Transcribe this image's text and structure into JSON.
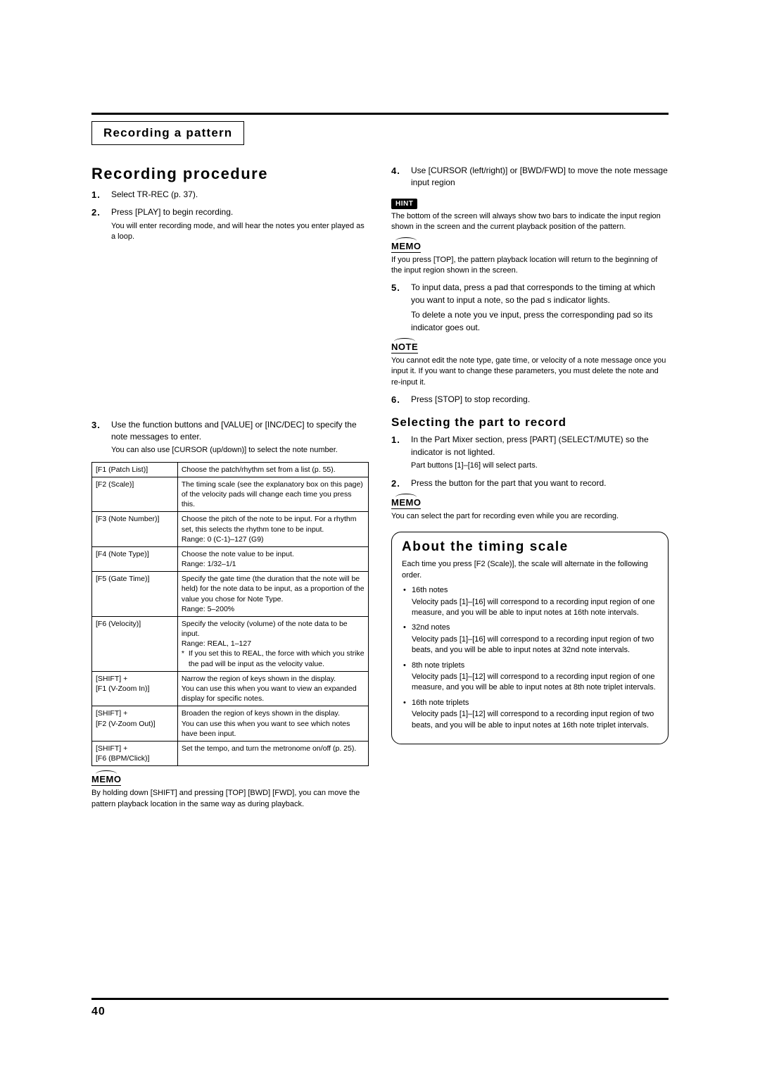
{
  "page_number": "40",
  "title_box": "Recording a pattern",
  "left": {
    "heading": "Recording procedure",
    "steps": [
      {
        "main": "Select TR-REC (p. 37)."
      },
      {
        "main": "Press [PLAY] to begin recording.",
        "sub": "You will enter recording mode, and will hear the notes you enter played as a loop."
      },
      {
        "main": "Use the function buttons and [VALUE] or [INC/DEC] to specify the note messages to enter.",
        "sub": "You can also use [CURSOR (up/down)]  to select the note number."
      }
    ],
    "func_table": [
      {
        "k": "[F1 (Patch List)]",
        "v": "Choose the patch/rhythm set from a list (p. 55)."
      },
      {
        "k": "[F2 (Scale)]",
        "v": "The timing scale (see the explanatory box on this page) of the velocity pads will change each time you press this."
      },
      {
        "k": "[F3 (Note Number)]",
        "v": "Choose the pitch of the note to be input. For a rhythm set, this selects the rhythm tone to be input.\nRange: 0 (C-1)–127 (G9)"
      },
      {
        "k": "[F4 (Note Type)]",
        "v": "Choose the note value to be input.\nRange: 1/32–1/1"
      },
      {
        "k": "[F5 (Gate Time)]",
        "v": "Specify the gate time (the duration that the note will be held) for the note data to be input, as a proportion of the value you chose for Note Type.\nRange: 5–200%"
      },
      {
        "k": "[F6 (Velocity)]",
        "v": "Specify the velocity (volume) of the note data to be input.\nRange: REAL, 1–127",
        "aster": "If you set this to REAL, the force with which you strike the pad will be input as the velocity value."
      },
      {
        "k": "[SHIFT] +\n[F1 (V-Zoom In)]",
        "v": "Narrow the region of keys shown in the display.\nYou can use this when you want to view an expanded display for specific notes."
      },
      {
        "k": "[SHIFT] +\n[F2 (V-Zoom Out)]",
        "v": "Broaden the region of keys shown in the display.\nYou can use this when you want to see which notes have been input."
      },
      {
        "k": "[SHIFT] +\n[F6 (BPM/Click)]",
        "v": "Set the tempo, and turn the metronome on/off (p. 25)."
      }
    ],
    "memo_label": "MEMO",
    "memo_text": "By holding down [SHIFT] and pressing [TOP] [BWD] [FWD], you can move the pattern playback location in the same way as during playback."
  },
  "right": {
    "step4": "Use [CURSOR (left/right)] or [BWD/FWD] to move the note message input region",
    "hint_badge": "HINT",
    "hint_text": "The bottom of the screen will always show two bars to indicate the input region shown in the screen and the current playback position of the pattern.",
    "memo1_label": "MEMO",
    "memo1_text": "If you press [TOP], the pattern playback location will return to the beginning of the input region shown in the screen.",
    "step5_a": "To input data, press a pad that corresponds to the timing at which you want to input a note, so the pad s indicator lights.",
    "step5_b": "To delete a note you ve input, press the corresponding pad so its indicator goes out.",
    "note_label": "NOTE",
    "note_text": "You cannot edit the note type, gate time, or velocity of a note message once you input it. If you want to change these parameters, you must delete the note and re-input it.",
    "step6": "Press [STOP] to stop recording.",
    "sub_heading": "Selecting the part to record",
    "sp_step1_a": "In the Part Mixer section, press [PART] (SELECT/MUTE) so the indicator is not lighted.",
    "sp_step1_b": "Part buttons [1]–[16] will select parts.",
    "sp_step2": "Press the button for the part that you want to record.",
    "memo2_label": "MEMO",
    "memo2_text": "You can select the part for recording even while you are recording.",
    "callout": {
      "title": "About the timing scale",
      "intro": "Each time you press [F2 (Scale)], the scale will alternate in the following order.",
      "items": [
        {
          "h": "16th notes",
          "d": "Velocity pads [1]–[16] will correspond to a recording input region of one measure, and you will be able to input notes at 16th note intervals."
        },
        {
          "h": "32nd notes",
          "d": "Velocity pads [1]–[16] will correspond to a recording input region of two beats, and you will be able to input notes at 32nd note intervals."
        },
        {
          "h": "8th note triplets",
          "d": "Velocity pads [1]–[12] will correspond to a recording input region of one measure, and you will be able to input notes at 8th note triplet intervals."
        },
        {
          "h": "16th note triplets",
          "d": "Velocity pads [1]–[12] will correspond to a recording input region of two beats, and you will be able to input notes at 16th note triplet intervals."
        }
      ]
    }
  }
}
